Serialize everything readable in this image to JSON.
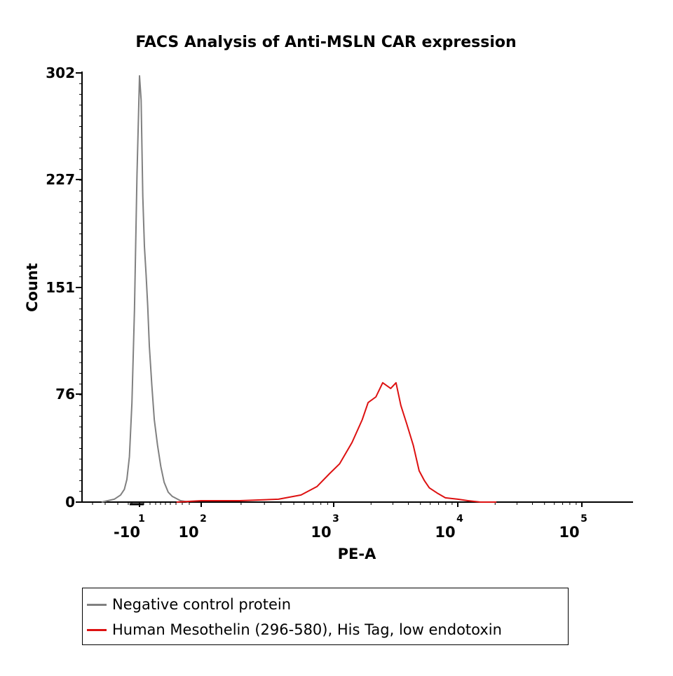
{
  "chart_data": {
    "type": "line",
    "title": "FACS Analysis of Anti-MSLN CAR expression",
    "xlabel": "PE-A",
    "ylabel": "Count",
    "x_scale": "biexponential (log)",
    "ylim": [
      0,
      302
    ],
    "y_ticks": [
      "0",
      "76",
      "151",
      "227",
      "302"
    ],
    "x_ticks": [
      {
        "base": "-10",
        "exp": "1"
      },
      {
        "base": "10",
        "exp": "2"
      },
      {
        "base": "10",
        "exp": "3"
      },
      {
        "base": "10",
        "exp": "4"
      },
      {
        "base": "10",
        "exp": "5"
      }
    ],
    "grid": false,
    "legend_position": "bottom",
    "series": [
      {
        "name": "Negative control protein",
        "color": "#808080",
        "x": [
          -30,
          -20,
          -15,
          -12,
          -10,
          -8,
          -6,
          -4,
          -2,
          0,
          2,
          4,
          6,
          8,
          10,
          12,
          15,
          18,
          22,
          26,
          30,
          35,
          40,
          50,
          60
        ],
        "values": [
          0,
          2,
          5,
          9,
          16,
          32,
          70,
          135,
          230,
          300,
          283,
          215,
          180,
          160,
          138,
          110,
          82,
          58,
          40,
          25,
          14,
          7,
          4,
          1,
          0
        ]
      },
      {
        "name": "Human Mesothelin (296-580), His Tag, low endotoxin",
        "color": "#dd1111",
        "x": [
          60,
          100,
          200,
          400,
          600,
          800,
          1000,
          1200,
          1500,
          1800,
          2000,
          2300,
          2600,
          3000,
          3300,
          3600,
          4000,
          4500,
          5000,
          5500,
          6000,
          7000,
          8000,
          10000,
          12000,
          15000,
          20000
        ],
        "values": [
          0,
          1,
          1,
          2,
          5,
          11,
          20,
          27,
          42,
          58,
          70,
          74,
          84,
          80,
          84,
          68,
          55,
          40,
          22,
          15,
          10,
          6,
          3,
          2,
          1,
          0,
          0
        ]
      }
    ]
  }
}
